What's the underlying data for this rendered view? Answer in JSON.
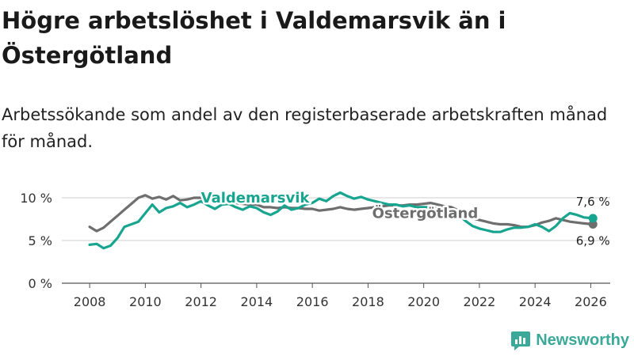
{
  "title": "Högre arbetslöshet i Valdemarsvik än i Östergötland",
  "subtitle": "Arbetssökande som andel av den registerbaserade arbetskraften månad för månad.",
  "brand": {
    "name": "Newsworthy",
    "color": "#3aa999"
  },
  "chart_data": {
    "type": "line",
    "title": "Högre arbetslöshet i Valdemarsvik än i Östergötland",
    "subtitle": "Arbetssökande som andel av den registerbaserade arbetskraften månad för månad.",
    "xlabel": "",
    "ylabel": "",
    "xlim": [
      2007.0,
      2026.7
    ],
    "ylim": [
      0,
      10
    ],
    "xticks": [
      {
        "value": 2008,
        "label": "2008"
      },
      {
        "value": 2010,
        "label": "2010"
      },
      {
        "value": 2012,
        "label": "2012"
      },
      {
        "value": 2014,
        "label": "2014"
      },
      {
        "value": 2016,
        "label": "2016"
      },
      {
        "value": 2018,
        "label": "2018"
      },
      {
        "value": 2020,
        "label": "2020"
      },
      {
        "value": 2022,
        "label": "2022"
      },
      {
        "value": 2024,
        "label": "2024"
      },
      {
        "value": 2026,
        "label": "2026"
      }
    ],
    "yticks": [
      {
        "value": 0,
        "label": "0 %"
      },
      {
        "value": 5,
        "label": "5 %"
      },
      {
        "value": 10,
        "label": "10 %"
      }
    ],
    "grid": true,
    "series": [
      {
        "name": "Östergötland",
        "label": "Östergötland",
        "color": "#6e6e6e",
        "end_label": "6,9 %",
        "x": [
          2008.0,
          2008.25,
          2008.5,
          2008.75,
          2009.0,
          2009.25,
          2009.5,
          2009.75,
          2010.0,
          2010.25,
          2010.5,
          2010.75,
          2011.0,
          2011.25,
          2011.5,
          2011.75,
          2012.0,
          2012.25,
          2012.5,
          2012.75,
          2013.0,
          2013.25,
          2013.5,
          2013.75,
          2014.0,
          2014.25,
          2014.5,
          2014.75,
          2015.0,
          2015.25,
          2015.5,
          2015.75,
          2016.0,
          2016.25,
          2016.5,
          2016.75,
          2017.0,
          2017.25,
          2017.5,
          2017.75,
          2018.0,
          2018.25,
          2018.5,
          2018.75,
          2019.0,
          2019.25,
          2019.5,
          2019.75,
          2020.0,
          2020.25,
          2020.5,
          2020.75,
          2021.0,
          2021.25,
          2021.5,
          2021.75,
          2022.0,
          2022.25,
          2022.5,
          2022.75,
          2023.0,
          2023.25,
          2023.5,
          2023.75,
          2024.0,
          2024.25,
          2024.5,
          2024.75,
          2025.0,
          2025.25,
          2025.5,
          2025.75,
          2026.08
        ],
        "values": [
          6.6,
          6.1,
          6.5,
          7.2,
          7.9,
          8.6,
          9.3,
          10.0,
          10.3,
          9.9,
          10.1,
          9.8,
          10.2,
          9.7,
          9.8,
          10.0,
          10.0,
          9.7,
          9.8,
          9.6,
          9.6,
          9.4,
          9.3,
          9.2,
          9.2,
          8.9,
          8.9,
          8.8,
          8.9,
          8.8,
          8.8,
          8.7,
          8.7,
          8.5,
          8.6,
          8.7,
          8.9,
          8.7,
          8.6,
          8.7,
          8.8,
          8.9,
          9.0,
          9.1,
          9.1,
          9.1,
          9.2,
          9.2,
          9.3,
          9.4,
          9.2,
          9.0,
          8.9,
          8.5,
          8.0,
          7.6,
          7.4,
          7.2,
          7.0,
          6.9,
          6.9,
          6.8,
          6.6,
          6.6,
          6.8,
          7.1,
          7.3,
          7.6,
          7.4,
          7.2,
          7.1,
          7.0,
          6.9
        ]
      },
      {
        "name": "Valdemarsvik",
        "label": "Valdemarsvik",
        "color": "#18a590",
        "end_label": "7,6 %",
        "x": [
          2008.0,
          2008.25,
          2008.5,
          2008.75,
          2009.0,
          2009.25,
          2009.5,
          2009.75,
          2010.0,
          2010.25,
          2010.5,
          2010.75,
          2011.0,
          2011.25,
          2011.5,
          2011.75,
          2012.0,
          2012.25,
          2012.5,
          2012.75,
          2013.0,
          2013.25,
          2013.5,
          2013.75,
          2014.0,
          2014.25,
          2014.5,
          2014.75,
          2015.0,
          2015.25,
          2015.5,
          2015.75,
          2016.0,
          2016.25,
          2016.5,
          2016.75,
          2017.0,
          2017.25,
          2017.5,
          2017.75,
          2018.0,
          2018.25,
          2018.5,
          2018.75,
          2019.0,
          2019.25,
          2019.5,
          2019.75,
          2020.0,
          2020.25,
          2020.5,
          2020.75,
          2021.0,
          2021.25,
          2021.5,
          2021.75,
          2022.0,
          2022.25,
          2022.5,
          2022.75,
          2023.0,
          2023.25,
          2023.5,
          2023.75,
          2024.0,
          2024.25,
          2024.5,
          2024.75,
          2025.0,
          2025.25,
          2025.5,
          2025.75,
          2026.08
        ],
        "values": [
          4.5,
          4.6,
          4.1,
          4.4,
          5.3,
          6.6,
          6.9,
          7.2,
          8.2,
          9.2,
          8.3,
          8.8,
          9.0,
          9.4,
          8.9,
          9.2,
          9.6,
          9.1,
          8.7,
          9.2,
          9.3,
          8.9,
          8.6,
          9.0,
          8.8,
          8.3,
          8.0,
          8.4,
          9.1,
          8.6,
          8.8,
          9.2,
          9.4,
          9.9,
          9.6,
          10.2,
          10.6,
          10.2,
          9.9,
          10.1,
          9.8,
          9.6,
          9.4,
          9.2,
          9.2,
          9.0,
          9.1,
          8.9,
          8.9,
          8.9,
          8.8,
          8.5,
          8.5,
          8.0,
          7.3,
          6.7,
          6.4,
          6.2,
          6.0,
          6.0,
          6.3,
          6.5,
          6.5,
          6.6,
          6.9,
          6.6,
          6.1,
          6.7,
          7.6,
          8.2,
          8.0,
          7.7,
          7.6
        ]
      }
    ]
  }
}
